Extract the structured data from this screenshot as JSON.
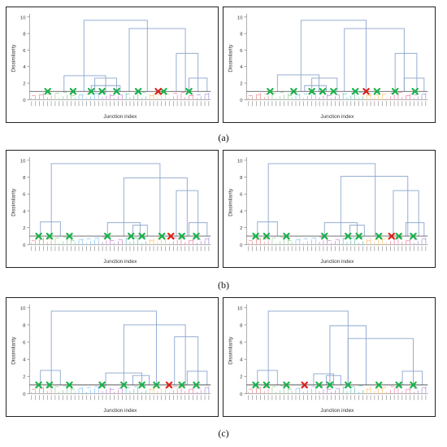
{
  "figure": {
    "captions": [
      "(a)",
      "(b)",
      "(c)"
    ]
  },
  "chart_data": [
    {
      "type": "dendrogram",
      "panel": "a-left",
      "ylabel": "Dissimilarity",
      "xlabel": "Junction index",
      "ylim": [
        0,
        10
      ],
      "yticks": [
        0,
        2,
        4,
        6,
        8,
        10
      ],
      "threshold": 1.0,
      "n_leaves": 46,
      "merges": [
        {
          "h": 9.6,
          "l": 0.3,
          "r": 0.65
        },
        {
          "h": 8.6,
          "l": 0.55,
          "r": 0.86
        },
        {
          "h": 5.6,
          "l": 0.81,
          "r": 0.93
        },
        {
          "h": 2.9,
          "l": 0.19,
          "r": 0.42
        },
        {
          "h": 2.6,
          "l": 0.36,
          "r": 0.48
        },
        {
          "h": 2.6,
          "l": 0.88,
          "r": 0.98
        },
        {
          "h": 1.7,
          "l": 0.34,
          "r": 0.5
        }
      ],
      "green_markers": [
        0.1,
        0.24,
        0.34,
        0.4,
        0.48,
        0.6,
        0.74,
        0.88
      ],
      "red_markers": [
        0.71
      ]
    },
    {
      "type": "dendrogram",
      "panel": "a-right",
      "ylabel": "Dissimilarity",
      "xlabel": "Junction index",
      "ylim": [
        0,
        10
      ],
      "yticks": [
        0,
        2,
        4,
        6,
        8,
        10
      ],
      "threshold": 1.0,
      "n_leaves": 46,
      "merges": [
        {
          "h": 9.6,
          "l": 0.3,
          "r": 0.66
        },
        {
          "h": 8.6,
          "l": 0.54,
          "r": 0.87
        },
        {
          "h": 5.6,
          "l": 0.82,
          "r": 0.94
        },
        {
          "h": 3.0,
          "l": 0.17,
          "r": 0.4
        },
        {
          "h": 2.6,
          "l": 0.36,
          "r": 0.5
        },
        {
          "h": 2.6,
          "l": 0.87,
          "r": 0.98
        },
        {
          "h": 1.7,
          "l": 0.32,
          "r": 0.44
        }
      ],
      "green_markers": [
        0.13,
        0.26,
        0.36,
        0.42,
        0.48,
        0.6,
        0.72,
        0.82,
        0.93
      ],
      "red_markers": [
        0.66
      ]
    },
    {
      "type": "dendrogram",
      "panel": "b-left",
      "ylabel": "Dissimilarity",
      "xlabel": "Junction index",
      "ylim": [
        0,
        10
      ],
      "yticks": [
        0,
        2,
        4,
        6,
        8,
        10
      ],
      "threshold": 1.0,
      "n_leaves": 46,
      "merges": [
        {
          "h": 9.6,
          "l": 0.12,
          "r": 0.72
        },
        {
          "h": 7.9,
          "l": 0.52,
          "r": 0.87
        },
        {
          "h": 6.4,
          "l": 0.81,
          "r": 0.93
        },
        {
          "h": 2.6,
          "l": 0.43,
          "r": 0.61
        },
        {
          "h": 2.3,
          "l": 0.57,
          "r": 0.65
        },
        {
          "h": 2.6,
          "l": 0.88,
          "r": 0.98
        },
        {
          "h": 2.7,
          "l": 0.06,
          "r": 0.17
        }
      ],
      "green_markers": [
        0.05,
        0.11,
        0.22,
        0.43,
        0.56,
        0.62,
        0.73,
        0.84,
        0.92
      ],
      "red_markers": [
        0.78
      ]
    },
    {
      "type": "dendrogram",
      "panel": "b-right",
      "ylabel": "Dissimilarity",
      "xlabel": "Junction index",
      "ylim": [
        0,
        10
      ],
      "yticks": [
        0,
        2,
        4,
        6,
        8,
        10
      ],
      "threshold": 1.0,
      "n_leaves": 46,
      "merges": [
        {
          "h": 9.6,
          "l": 0.12,
          "r": 0.71
        },
        {
          "h": 8.1,
          "l": 0.52,
          "r": 0.89
        },
        {
          "h": 6.4,
          "l": 0.81,
          "r": 0.95
        },
        {
          "h": 2.6,
          "l": 0.43,
          "r": 0.61
        },
        {
          "h": 2.3,
          "l": 0.57,
          "r": 0.65
        },
        {
          "h": 2.6,
          "l": 0.88,
          "r": 0.98
        },
        {
          "h": 2.7,
          "l": 0.06,
          "r": 0.17
        }
      ],
      "green_markers": [
        0.05,
        0.11,
        0.22,
        0.43,
        0.56,
        0.62,
        0.73,
        0.84,
        0.92
      ],
      "red_markers": [
        0.8
      ]
    },
    {
      "type": "dendrogram",
      "panel": "c-left",
      "ylabel": "Dissimilarity",
      "xlabel": "Junction index",
      "ylim": [
        0,
        10
      ],
      "yticks": [
        0,
        2,
        4,
        6,
        8,
        10
      ],
      "threshold": 1.0,
      "n_leaves": 46,
      "merges": [
        {
          "h": 9.6,
          "l": 0.12,
          "r": 0.7
        },
        {
          "h": 8.0,
          "l": 0.52,
          "r": 0.86
        },
        {
          "h": 6.6,
          "l": 0.8,
          "r": 0.93
        },
        {
          "h": 2.4,
          "l": 0.42,
          "r": 0.62
        },
        {
          "h": 2.1,
          "l": 0.57,
          "r": 0.66
        },
        {
          "h": 2.6,
          "l": 0.87,
          "r": 0.98
        },
        {
          "h": 2.7,
          "l": 0.06,
          "r": 0.17
        }
      ],
      "green_markers": [
        0.05,
        0.11,
        0.22,
        0.4,
        0.52,
        0.62,
        0.7,
        0.84,
        0.92
      ],
      "red_markers": [
        0.77
      ]
    },
    {
      "type": "dendrogram",
      "panel": "c-right",
      "ylabel": "Dissimilarity",
      "xlabel": "Junction index",
      "ylim": [
        0,
        10
      ],
      "yticks": [
        0,
        2,
        4,
        6,
        8,
        10
      ],
      "threshold": 1.0,
      "n_leaves": 46,
      "merges": [
        {
          "h": 9.6,
          "l": 0.12,
          "r": 0.56
        },
        {
          "h": 7.9,
          "l": 0.46,
          "r": 0.66
        },
        {
          "h": 6.4,
          "l": 0.56,
          "r": 0.92
        },
        {
          "h": 2.3,
          "l": 0.37,
          "r": 0.48
        },
        {
          "h": 2.1,
          "l": 0.44,
          "r": 0.52
        },
        {
          "h": 2.6,
          "l": 0.86,
          "r": 0.97
        },
        {
          "h": 2.7,
          "l": 0.06,
          "r": 0.17
        }
      ],
      "green_markers": [
        0.05,
        0.11,
        0.22,
        0.4,
        0.46,
        0.56,
        0.73,
        0.84,
        0.92
      ],
      "red_markers": [
        0.32
      ]
    }
  ]
}
